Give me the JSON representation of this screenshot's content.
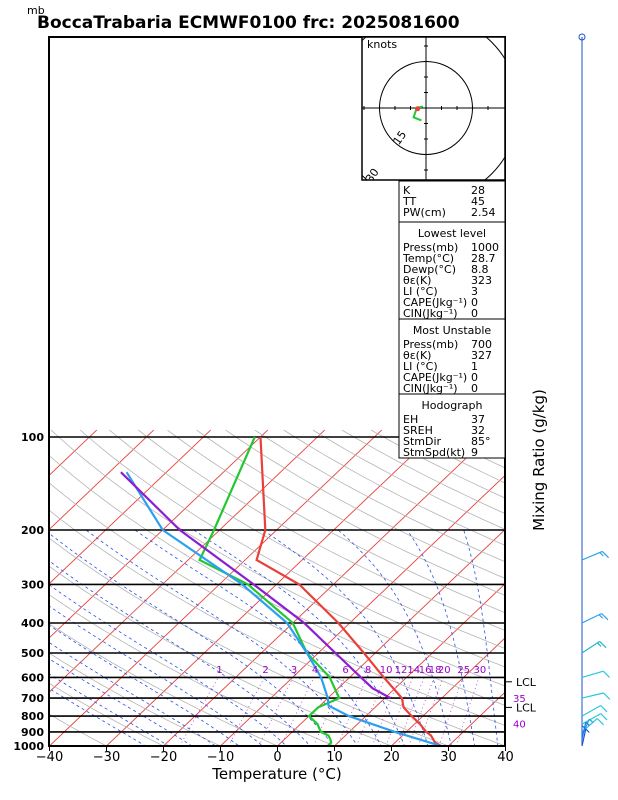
{
  "chart_data": {
    "type": "line",
    "title": "BoccaTrabaria ECMWF0100 frc: 2025081600",
    "y_unit": "mb",
    "xlabel": "Temperature (°C)",
    "right_label": "Mixing Ratio (g/kg)",
    "xlim": [
      -40,
      40
    ],
    "ylim_pressure": [
      1000,
      100
    ],
    "x_ticks": [
      "−40",
      "−30",
      "−20",
      "−10",
      "0",
      "10",
      "20",
      "30",
      "40"
    ],
    "pressure_ticks": [
      {
        "p": 100,
        "label": "100"
      },
      {
        "p": 200,
        "label": "200"
      },
      {
        "p": 300,
        "label": "300"
      },
      {
        "p": 400,
        "label": "400"
      },
      {
        "p": 500,
        "label": "500"
      },
      {
        "p": 600,
        "label": "600"
      },
      {
        "p": 700,
        "label": "700"
      },
      {
        "p": 800,
        "label": "800"
      },
      {
        "p": 900,
        "label": "900"
      },
      {
        "p": 1000,
        "label": "1000"
      }
    ],
    "mixing_ratio_labels": [
      "1",
      "2",
      "3",
      "4",
      "6",
      "8",
      "10",
      "12",
      "14",
      "16",
      "18",
      "20",
      "25",
      "30"
    ],
    "right_annotations": [
      {
        "p": 620,
        "label": "LCL",
        "color": "#000000"
      },
      {
        "p": 700,
        "label": "35",
        "color": "#9a00c8"
      },
      {
        "p": 750,
        "label": "LCL",
        "color": "#000000"
      },
      {
        "p": 845,
        "label": "40",
        "color": "#9a00c8"
      }
    ],
    "series": [
      {
        "key": "temperature",
        "color": "#e8403a",
        "points": [
          {
            "p": 1000,
            "t": 28.7
          },
          {
            "p": 975,
            "t": 27.0
          },
          {
            "p": 925,
            "t": 25.0
          },
          {
            "p": 900,
            "t": 23.5
          },
          {
            "p": 850,
            "t": 21.0
          },
          {
            "p": 800,
            "t": 18.0
          },
          {
            "p": 750,
            "t": 15.0
          },
          {
            "p": 700,
            "t": 13.0
          },
          {
            "p": 600,
            "t": 6.0
          },
          {
            "p": 500,
            "t": -2.0
          },
          {
            "p": 400,
            "t": -12.0
          },
          {
            "p": 300,
            "t": -26.0
          },
          {
            "p": 250,
            "t": -38.0
          },
          {
            "p": 200,
            "t": -42.0
          },
          {
            "p": 100,
            "t": -60.0
          }
        ]
      },
      {
        "key": "dewpoint",
        "color": "#22c832",
        "points": [
          {
            "p": 1000,
            "t": 8.8
          },
          {
            "p": 975,
            "t": 8.8
          },
          {
            "p": 950,
            "t": 8.0
          },
          {
            "p": 925,
            "t": 7.0
          },
          {
            "p": 900,
            "t": 5.0
          },
          {
            "p": 850,
            "t": 3.0
          },
          {
            "p": 800,
            "t": 0.0
          },
          {
            "p": 750,
            "t": 0.0
          },
          {
            "p": 700,
            "t": 2.0
          },
          {
            "p": 600,
            "t": -3.5
          },
          {
            "p": 500,
            "t": -12.0
          },
          {
            "p": 400,
            "t": -20.0
          },
          {
            "p": 300,
            "t": -35.0
          },
          {
            "p": 250,
            "t": -48.0
          },
          {
            "p": 200,
            "t": -51.0
          },
          {
            "p": 100,
            "t": -61.0
          }
        ]
      },
      {
        "key": "parcel_surface",
        "color": "#2d9ff0",
        "points": [
          {
            "p": 1000,
            "t": 28.7
          },
          {
            "p": 900,
            "t": 18.0
          },
          {
            "p": 800,
            "t": 7.0
          },
          {
            "p": 740,
            "t": 1.5
          },
          {
            "p": 700,
            "t": 0.0
          },
          {
            "p": 600,
            "t": -5.0
          },
          {
            "p": 500,
            "t": -12.0
          },
          {
            "p": 400,
            "t": -21.0
          },
          {
            "p": 300,
            "t": -36.0
          },
          {
            "p": 200,
            "t": -60.0
          },
          {
            "p": 130,
            "t": -77.0
          }
        ]
      },
      {
        "key": "parcel_unstable",
        "color": "#8c1ed2",
        "points": [
          {
            "p": 700,
            "t": 11.0
          },
          {
            "p": 650,
            "t": 6.0
          },
          {
            "p": 600,
            "t": 2.0
          },
          {
            "p": 500,
            "t": -7.0
          },
          {
            "p": 400,
            "t": -18.0
          },
          {
            "p": 300,
            "t": -34.0
          },
          {
            "p": 200,
            "t": -57.0
          },
          {
            "p": 130,
            "t": -78.0
          }
        ]
      }
    ]
  },
  "hodograph": {
    "unit": "knots",
    "rings": [
      "15",
      "30",
      "45"
    ],
    "trace_points": [
      {
        "u": -1.0,
        "v": 0.5
      },
      {
        "u": -3.0,
        "v": 0.0
      },
      {
        "u": -4.0,
        "v": -3.0
      },
      {
        "u": -1.5,
        "v": -4.0
      }
    ],
    "storm_motion": {
      "dir_deg": 85,
      "speed_kt": 9
    }
  },
  "indices": {
    "top": [
      {
        "label": "K",
        "value": "28"
      },
      {
        "label": "TT",
        "value": "45"
      },
      {
        "label": "PW(cm)",
        "value": "2.54"
      }
    ],
    "lowest": {
      "header": "Lowest level",
      "rows": [
        {
          "label": "Press(mb)",
          "value": "1000"
        },
        {
          "label": "Temp(°C)",
          "value": "28.7"
        },
        {
          "label": "Dewp(°C)",
          "value": "8.8"
        },
        {
          "label": "θε(K)",
          "value": "323"
        },
        {
          "label": "LI (°C)",
          "value": "3"
        },
        {
          "label": "CAPE(Jkg⁻¹)",
          "value": "0"
        },
        {
          "label": "CIN(Jkg⁻¹)",
          "value": "0"
        }
      ]
    },
    "unstable": {
      "header": "Most Unstable",
      "rows": [
        {
          "label": "Press(mb)",
          "value": "700"
        },
        {
          "label": "θε(K)",
          "value": "327"
        },
        {
          "label": "LI (°C)",
          "value": "1"
        },
        {
          "label": "CAPE(Jkg⁻¹)",
          "value": "0"
        },
        {
          "label": "CIN(Jkg⁻¹)",
          "value": "0"
        }
      ]
    },
    "hodo": {
      "header": "Hodograph",
      "rows": [
        {
          "label": "EH",
          "value": "37"
        },
        {
          "label": "SREH",
          "value": "32"
        },
        {
          "label": "StmDir",
          "value": "85°"
        },
        {
          "label": "StmSpd(kt)",
          "value": "9"
        }
      ]
    }
  },
  "wind_barbs": [
    {
      "p": 100,
      "dir": 270,
      "spd": 0,
      "color": "#1e78e0"
    },
    {
      "p": 250,
      "dir": 250,
      "spd": 15,
      "color": "#28a0e8"
    },
    {
      "p": 400,
      "dir": 245,
      "spd": 15,
      "color": "#28a0e8"
    },
    {
      "p": 500,
      "dir": 235,
      "spd": 15,
      "color": "#28b4c8"
    },
    {
      "p": 600,
      "dir": 260,
      "spd": 10,
      "color": "#28c8dc"
    },
    {
      "p": 700,
      "dir": 265,
      "spd": 10,
      "color": "#28c8dc"
    },
    {
      "p": 800,
      "dir": 240,
      "spd": 10,
      "color": "#28c8dc"
    },
    {
      "p": 850,
      "dir": 240,
      "spd": 10,
      "color": "#28c8dc"
    },
    {
      "p": 900,
      "dir": 225,
      "spd": 10,
      "color": "#28c8dc"
    },
    {
      "p": 925,
      "dir": 200,
      "spd": 5,
      "color": "#28a0e8"
    },
    {
      "p": 950,
      "dir": 190,
      "spd": 5,
      "color": "#1e78e0"
    },
    {
      "p": 975,
      "dir": 180,
      "spd": 5,
      "color": "#1e78e0"
    },
    {
      "p": 1000,
      "dir": 170,
      "spd": 5,
      "color": "#1e50c8"
    }
  ],
  "colors": {
    "isotherm": "#e8403a",
    "dry_adiabat": "#b4b4b4",
    "moist_adiabat": "#2850e6",
    "mixing_ratio": "#b43cc8",
    "frame": "#000000"
  }
}
